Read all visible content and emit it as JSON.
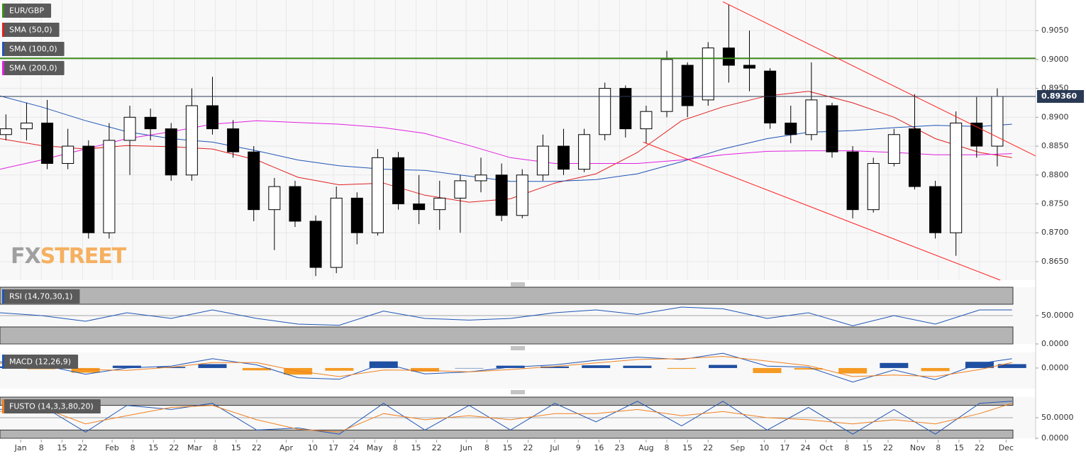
{
  "chart_data": [
    {
      "type": "candlestick",
      "legend": [
        {
          "name": "EUR/GBP",
          "color": "#3c8c1e"
        },
        {
          "name": "SMA (50,0)",
          "color": "#e02020"
        },
        {
          "name": "SMA (100,0)",
          "color": "#1f55b5"
        },
        {
          "name": "SMA (200,0)",
          "color": "#e020e0"
        }
      ],
      "watermark": [
        "FX",
        "STREET"
      ],
      "x": [
        -4,
        3,
        10,
        17,
        24,
        31,
        38,
        45,
        52,
        59,
        66,
        73,
        80,
        87,
        94,
        101,
        108,
        115,
        122,
        129,
        136,
        143,
        150,
        157,
        164,
        171,
        178,
        185,
        192,
        199,
        206,
        213,
        220,
        227,
        234,
        241,
        248,
        255,
        262,
        269,
        276,
        283,
        290,
        297,
        304,
        311,
        318,
        325,
        332
      ],
      "open": [
        0.887,
        0.888,
        0.889,
        0.882,
        0.885,
        0.87,
        0.886,
        0.89,
        0.888,
        0.88,
        0.892,
        0.888,
        0.884,
        0.874,
        0.878,
        0.872,
        0.864,
        0.876,
        0.87,
        0.883,
        0.875,
        0.874,
        0.876,
        0.879,
        0.88,
        0.873,
        0.88,
        0.885,
        0.881,
        0.887,
        0.895,
        0.888,
        0.891,
        0.899,
        0.893,
        0.902,
        0.899,
        0.898,
        0.889,
        0.887,
        0.892,
        0.884,
        0.874,
        0.882,
        0.888,
        0.878,
        0.87,
        0.889,
        0.885
      ],
      "high": [
        0.8905,
        0.8925,
        0.893,
        0.888,
        0.886,
        0.889,
        0.892,
        0.8915,
        0.889,
        0.895,
        0.897,
        0.8895,
        0.885,
        0.8795,
        0.879,
        0.873,
        0.878,
        0.877,
        0.8845,
        0.884,
        0.88,
        0.879,
        0.88,
        0.883,
        0.882,
        0.881,
        0.887,
        0.888,
        0.888,
        0.896,
        0.8955,
        0.892,
        0.9015,
        0.8995,
        0.903,
        0.9095,
        0.905,
        0.8985,
        0.892,
        0.8995,
        0.8925,
        0.885,
        0.883,
        0.888,
        0.894,
        0.879,
        0.891,
        0.8935,
        0.895
      ],
      "low": [
        0.886,
        0.886,
        0.881,
        0.881,
        0.869,
        0.869,
        0.88,
        0.886,
        0.879,
        0.879,
        0.887,
        0.883,
        0.872,
        0.867,
        0.871,
        0.8625,
        0.863,
        0.868,
        0.8695,
        0.874,
        0.8715,
        0.8705,
        0.87,
        0.877,
        0.872,
        0.8725,
        0.879,
        0.88,
        0.8805,
        0.886,
        0.8865,
        0.8855,
        0.89,
        0.89,
        0.892,
        0.896,
        0.8945,
        0.888,
        0.8855,
        0.886,
        0.883,
        0.8725,
        0.8735,
        0.8815,
        0.8775,
        0.869,
        0.866,
        0.883,
        0.8815
      ],
      "close": [
        0.888,
        0.889,
        0.882,
        0.885,
        0.87,
        0.886,
        0.89,
        0.888,
        0.88,
        0.892,
        0.888,
        0.884,
        0.874,
        0.878,
        0.872,
        0.864,
        0.876,
        0.87,
        0.883,
        0.875,
        0.874,
        0.876,
        0.879,
        0.88,
        0.873,
        0.88,
        0.885,
        0.881,
        0.887,
        0.895,
        0.888,
        0.891,
        0.9,
        0.892,
        0.902,
        0.899,
        0.8985,
        0.889,
        0.887,
        0.893,
        0.884,
        0.874,
        0.882,
        0.887,
        0.878,
        0.87,
        0.889,
        0.885,
        0.8936
      ],
      "overlay_x": [
        -6,
        8,
        23,
        37,
        52,
        66,
        81,
        95,
        109,
        124,
        138,
        153,
        167,
        182,
        196,
        210,
        225,
        239,
        254,
        268,
        283,
        297,
        311,
        326,
        337
      ],
      "overlays": [
        {
          "color": "#e02020",
          "values": [
            0.8863,
            0.8851,
            0.8845,
            0.8851,
            0.8849,
            0.8845,
            0.8826,
            0.8796,
            0.8783,
            0.8786,
            0.8765,
            0.8753,
            0.8759,
            0.8786,
            0.8802,
            0.8839,
            0.8894,
            0.8918,
            0.8937,
            0.8945,
            0.8925,
            0.89,
            0.8863,
            0.8839,
            0.883
          ]
        },
        {
          "color": "#1f55b5",
          "values": [
            0.8937,
            0.8918,
            0.8894,
            0.8875,
            0.8863,
            0.8857,
            0.8842,
            0.8826,
            0.8816,
            0.881,
            0.8808,
            0.8798,
            0.8789,
            0.8789,
            0.8792,
            0.8802,
            0.8823,
            0.8845,
            0.8863,
            0.8874,
            0.8877,
            0.8882,
            0.8886,
            0.8884,
            0.8888
          ]
        },
        {
          "color": "#e020e0",
          "values": [
            0.881,
            0.8826,
            0.8845,
            0.8863,
            0.8875,
            0.8888,
            0.8894,
            0.8891,
            0.8888,
            0.8882,
            0.8872,
            0.8851,
            0.883,
            0.882,
            0.882,
            0.882,
            0.8826,
            0.8835,
            0.8841,
            0.8842,
            0.8842,
            0.8839,
            0.8835,
            0.8835,
            0.8837
          ]
        }
      ],
      "resistance": {
        "value": 0.9002,
        "color": "#3c8c1e"
      },
      "last_price": {
        "value": 0.8936,
        "label": "0.89360"
      },
      "trendlines": [
        {
          "color": "#ff2020",
          "x": [
            239,
            345
          ],
          "y": [
            0.91,
            0.8833
          ]
        },
        {
          "color": "#ff2020",
          "x": [
            212,
            333
          ],
          "y": [
            0.8857,
            0.8618
          ]
        }
      ],
      "xlim": [
        -6,
        345
      ],
      "xticks": [
        {
          "value": 1,
          "label": "Jan"
        },
        {
          "value": 8,
          "label": "8"
        },
        {
          "value": 15,
          "label": "15"
        },
        {
          "value": 22,
          "label": "22"
        },
        {
          "value": 32,
          "label": "Feb"
        },
        {
          "value": 39,
          "label": "8"
        },
        {
          "value": 46,
          "label": "15"
        },
        {
          "value": 53,
          "label": "22"
        },
        {
          "value": 60,
          "label": "Mar"
        },
        {
          "value": 67,
          "label": "8"
        },
        {
          "value": 74,
          "label": "15"
        },
        {
          "value": 81,
          "label": "22"
        },
        {
          "value": 91,
          "label": "Apr"
        },
        {
          "value": 100,
          "label": "10"
        },
        {
          "value": 107,
          "label": "17"
        },
        {
          "value": 114,
          "label": "24"
        },
        {
          "value": 121,
          "label": "May"
        },
        {
          "value": 128,
          "label": "8"
        },
        {
          "value": 135,
          "label": "15"
        },
        {
          "value": 142,
          "label": "22"
        },
        {
          "value": 152,
          "label": "Jun"
        },
        {
          "value": 159,
          "label": "8"
        },
        {
          "value": 166,
          "label": "15"
        },
        {
          "value": 173,
          "label": "22"
        },
        {
          "value": 182,
          "label": "Jul"
        },
        {
          "value": 190,
          "label": "9"
        },
        {
          "value": 197,
          "label": "16"
        },
        {
          "value": 204,
          "label": "23"
        },
        {
          "value": 213,
          "label": "Aug"
        },
        {
          "value": 220,
          "label": "8"
        },
        {
          "value": 227,
          "label": "15"
        },
        {
          "value": 234,
          "label": "22"
        },
        {
          "value": 244,
          "label": "Sep"
        },
        {
          "value": 253,
          "label": "10"
        },
        {
          "value": 260,
          "label": "17"
        },
        {
          "value": 267,
          "label": "24"
        },
        {
          "value": 274,
          "label": "Oct"
        },
        {
          "value": 281,
          "label": "8"
        },
        {
          "value": 288,
          "label": "15"
        },
        {
          "value": 295,
          "label": "22"
        },
        {
          "value": 305,
          "label": "Nov"
        },
        {
          "value": 312,
          "label": "8"
        },
        {
          "value": 319,
          "label": "15"
        },
        {
          "value": 326,
          "label": "22"
        },
        {
          "value": 335,
          "label": "Dec"
        }
      ],
      "ylim": [
        0.8618,
        0.9103
      ],
      "yticks": [
        {
          "value": 0.865,
          "label": "0.8650"
        },
        {
          "value": 0.87,
          "label": "0.8700"
        },
        {
          "value": 0.875,
          "label": "0.8750"
        },
        {
          "value": 0.88,
          "label": "0.8800"
        },
        {
          "value": 0.885,
          "label": "0.8850"
        },
        {
          "value": 0.89,
          "label": "0.8900"
        },
        {
          "value": 0.895,
          "label": "0.8950"
        },
        {
          "value": 0.9,
          "label": "0.9000"
        },
        {
          "value": 0.905,
          "label": "0.9050"
        }
      ],
      "grid": true
    },
    {
      "type": "line",
      "label": "RSI (14,70,30,1)",
      "label_color": "#1f55b5",
      "bands": [
        70,
        30
      ],
      "x": [
        -6,
        8,
        23,
        37,
        52,
        66,
        81,
        95,
        109,
        124,
        138,
        153,
        167,
        182,
        196,
        210,
        225,
        239,
        254,
        268,
        283,
        297,
        311,
        326,
        337
      ],
      "series": [
        {
          "color": "#1f55b5",
          "values": [
            55,
            50,
            40,
            55,
            45,
            60,
            45,
            35,
            33,
            58,
            45,
            42,
            45,
            55,
            60,
            52,
            65,
            62,
            45,
            55,
            32,
            50,
            35,
            60,
            60
          ]
        }
      ],
      "xlim": [
        -6,
        345
      ],
      "ylim": [
        0,
        100
      ],
      "yticks": [
        {
          "value": 50,
          "label": "50.0000"
        },
        {
          "value": 0,
          "label": "0.0000"
        }
      ]
    },
    {
      "type": "macd",
      "label": "MACD (12,26,9)",
      "label_color": "#1f55b5",
      "x": [
        -6,
        8,
        23,
        37,
        52,
        66,
        81,
        95,
        109,
        124,
        138,
        153,
        167,
        182,
        196,
        210,
        225,
        239,
        254,
        268,
        283,
        297,
        311,
        326,
        337
      ],
      "macd": {
        "color": "#1f55b5",
        "values": [
          0.0016,
          0.0008,
          -0.0016,
          0.0,
          0.0005,
          0.0024,
          0.0008,
          -0.0025,
          -0.0029,
          0.0012,
          -0.0015,
          -0.001,
          0.0002,
          0.0008,
          0.002,
          0.0028,
          0.0022,
          0.0038,
          0.0005,
          0.0002,
          -0.0036,
          -0.0005,
          -0.003,
          0.0012,
          0.0024
        ]
      },
      "signal": {
        "color": "#f08020",
        "values": [
          0.0012,
          0.0011,
          -0.0004,
          -0.0006,
          0.0002,
          0.0014,
          0.0014,
          -0.0008,
          -0.0022,
          -0.0005,
          -0.0006,
          -0.001,
          -0.0004,
          0.0004,
          0.0013,
          0.0022,
          0.0024,
          0.003,
          0.0018,
          0.0006,
          -0.0022,
          -0.0018,
          -0.0022,
          -0.0004,
          0.0014
        ]
      },
      "histogram": {
        "colors": [
          "#1f4fa0",
          "#f59a23"
        ],
        "values": [
          0.0004,
          -0.0003,
          -0.0012,
          0.0006,
          0.0003,
          0.001,
          -0.0006,
          -0.0017,
          -0.0007,
          0.0017,
          -0.0009,
          0.0,
          0.0006,
          0.0004,
          0.0007,
          0.0006,
          -0.0002,
          0.0008,
          -0.0013,
          -0.0004,
          -0.0014,
          0.0013,
          -0.0008,
          0.0016,
          0.001
        ]
      },
      "xlim": [
        -6,
        345
      ],
      "ylim": [
        -0.0053,
        0.004
      ],
      "yticks": [
        {
          "value": 0,
          "label": "0.0000"
        }
      ]
    },
    {
      "type": "line",
      "label": "FUSTO (14,3,3,80,20)",
      "label_color": "#f08020",
      "bands": [
        80,
        20
      ],
      "x": [
        -6,
        8,
        23,
        37,
        52,
        66,
        81,
        95,
        109,
        124,
        138,
        153,
        167,
        182,
        196,
        210,
        225,
        239,
        254,
        268,
        283,
        297,
        311,
        326,
        337
      ],
      "series": [
        {
          "color": "#1f55b5",
          "values": [
            70,
            80,
            15,
            80,
            70,
            85,
            20,
            25,
            10,
            85,
            20,
            80,
            20,
            85,
            40,
            90,
            30,
            90,
            20,
            75,
            10,
            70,
            10,
            85,
            90
          ]
        },
        {
          "color": "#f08020",
          "values": [
            65,
            75,
            35,
            55,
            75,
            80,
            45,
            22,
            15,
            60,
            45,
            55,
            45,
            60,
            60,
            70,
            55,
            65,
            50,
            45,
            35,
            45,
            35,
            60,
            85
          ]
        }
      ],
      "xlim": [
        -6,
        345
      ],
      "ylim": [
        0,
        100
      ],
      "yticks": [
        {
          "value": 50,
          "label": "50.0000"
        },
        {
          "value": 0,
          "label": "0.0000"
        }
      ]
    }
  ]
}
